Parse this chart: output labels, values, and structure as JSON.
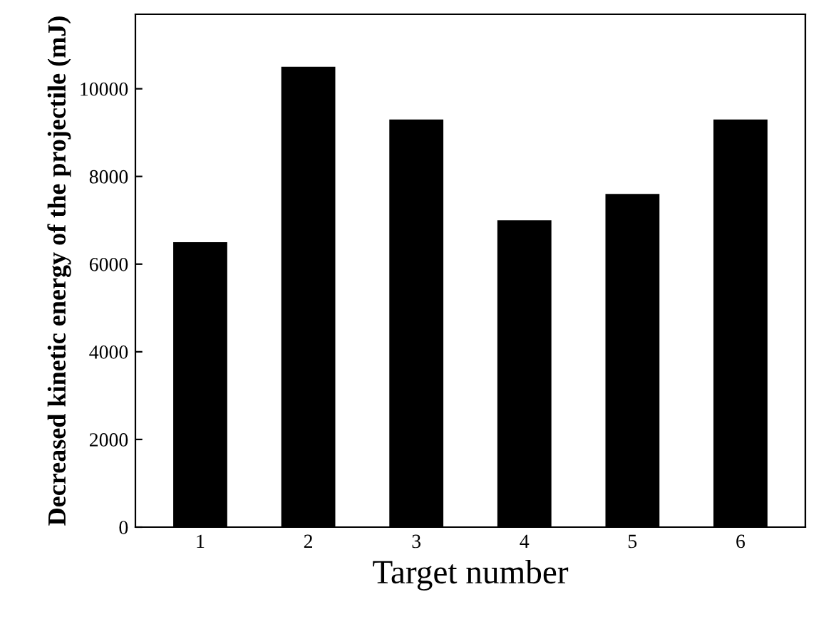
{
  "chart_data": {
    "type": "bar",
    "xlabel": "Target number",
    "ylabel": "Decreased kinetic energy of the projectile (mJ)",
    "categories": [
      "1",
      "2",
      "3",
      "4",
      "5",
      "6"
    ],
    "values": [
      6500,
      10500,
      9300,
      7000,
      7600,
      9300
    ],
    "color": "#000000",
    "ylim": [
      0,
      11700
    ],
    "yticks": [
      0,
      2000,
      4000,
      6000,
      8000,
      10000
    ],
    "grid": false,
    "legend": false
  }
}
